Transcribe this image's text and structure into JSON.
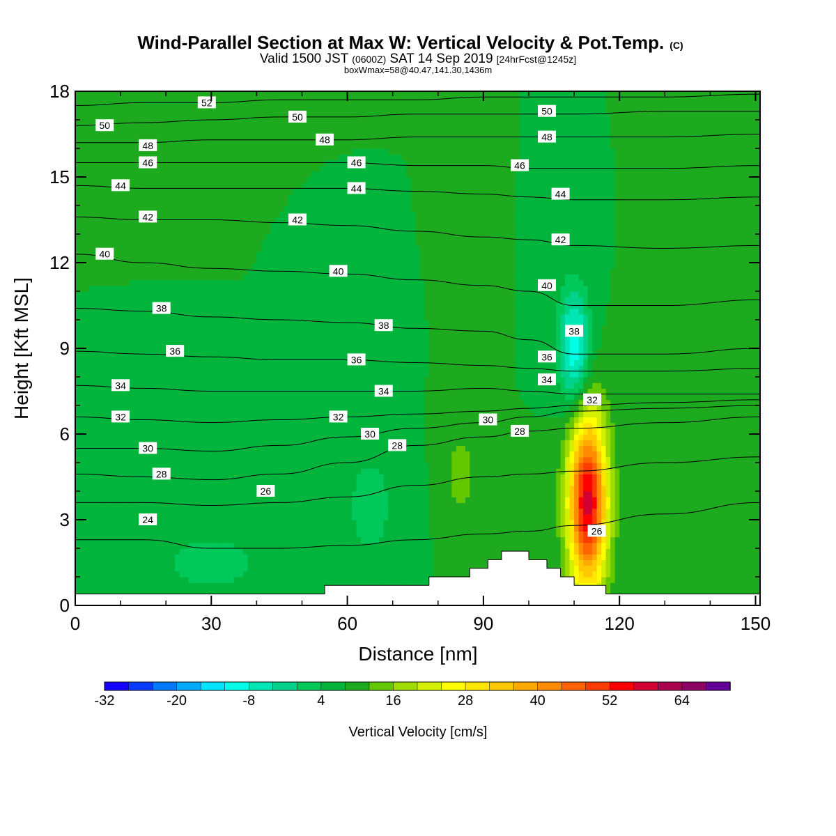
{
  "titles": {
    "main": "Wind-Parallel Section at Max W: Vertical Velocity & Pot.Temp.",
    "main_suffix": "(C)",
    "valid_prefix": "Valid 1500 JST",
    "valid_z": "(0600Z)",
    "valid_date": "SAT 14 Sep 2019",
    "valid_fcst": "[24hrFcst@1245z]",
    "boxinfo": "boxWmax=58@40.47,141.30,1436m"
  },
  "chart_data": {
    "type": "heatmap",
    "xlabel": "Distance [nm]",
    "ylabel": "Height [Kft MSL]",
    "xlim": [
      0,
      151
    ],
    "ylim": [
      0,
      18
    ],
    "x_ticks": [
      "0",
      "30",
      "60",
      "90",
      "120",
      "150"
    ],
    "y_ticks": [
      "0",
      "3",
      "6",
      "9",
      "12",
      "15",
      "18"
    ],
    "background_value": 8,
    "velocity_features": [
      {
        "x": 113,
        "y": 3.6,
        "rx": 5,
        "ry": 3.6,
        "peak": 58
      },
      {
        "x": 85,
        "y": 4.6,
        "rx": 4,
        "ry": 2,
        "peak": 14
      },
      {
        "x": 87,
        "y": 10.5,
        "rx": 3,
        "ry": 3,
        "peak": 12
      },
      {
        "x": 110,
        "y": 9,
        "rx": 4,
        "ry": 2.5,
        "peak": -12
      },
      {
        "x": 65,
        "y": 3.5,
        "rx": 7,
        "ry": 2.5,
        "peak": 2
      },
      {
        "x": 30,
        "y": 1.5,
        "rx": 20,
        "ry": 2,
        "peak": 3
      },
      {
        "x": 140,
        "y": 15,
        "rx": 6,
        "ry": 3,
        "peak": 12
      }
    ],
    "terrain": [
      [
        0,
        0.4
      ],
      [
        55,
        0.4
      ],
      [
        55,
        0.7
      ],
      [
        78,
        0.7
      ],
      [
        78,
        1.0
      ],
      [
        87,
        1.0
      ],
      [
        87,
        1.3
      ],
      [
        91,
        1.3
      ],
      [
        91,
        1.6
      ],
      [
        94,
        1.6
      ],
      [
        94,
        1.9
      ],
      [
        100,
        1.9
      ],
      [
        100,
        1.6
      ],
      [
        104,
        1.6
      ],
      [
        104,
        1.3
      ],
      [
        107,
        1.3
      ],
      [
        107,
        1.0
      ],
      [
        110,
        1.0
      ],
      [
        110,
        0.7
      ],
      [
        117,
        0.7
      ],
      [
        117,
        0.4
      ],
      [
        151,
        0.4
      ]
    ],
    "theta_contours": [
      {
        "value": 24,
        "height_kft": [
          2.3,
          2.3,
          2.0,
          2.0,
          2.1,
          2.3,
          2.5,
          2.6,
          2.8,
          3.2,
          3.6
        ]
      },
      {
        "value": 26,
        "height_kft": [
          3.6,
          3.6,
          3.5,
          3.6,
          3.8,
          4.2,
          4.5,
          4.6,
          4.7,
          5.0,
          5.2
        ]
      },
      {
        "value": 28,
        "height_kft": [
          4.6,
          4.5,
          4.4,
          4.6,
          5.0,
          5.6,
          5.9,
          6.1,
          6.2,
          6.4,
          6.6
        ]
      },
      {
        "value": 30,
        "height_kft": [
          5.5,
          5.5,
          5.4,
          5.6,
          5.9,
          6.2,
          6.4,
          6.6,
          6.8,
          6.9,
          7.0
        ]
      },
      {
        "value": 32,
        "height_kft": [
          6.6,
          6.5,
          6.4,
          6.5,
          6.6,
          6.7,
          6.8,
          6.9,
          7.0,
          7.1,
          7.2
        ]
      },
      {
        "value": 34,
        "height_kft": [
          7.7,
          7.6,
          7.5,
          7.5,
          7.5,
          7.5,
          7.6,
          7.5,
          7.4,
          7.4,
          7.4
        ]
      },
      {
        "value": 36,
        "height_kft": [
          8.9,
          8.8,
          8.7,
          8.6,
          8.6,
          8.5,
          8.4,
          8.3,
          8.2,
          8.2,
          8.3
        ]
      },
      {
        "value": 38,
        "height_kft": [
          10.4,
          10.3,
          10.1,
          10.0,
          9.9,
          9.7,
          9.6,
          9.3,
          8.8,
          8.8,
          9.0
        ]
      },
      {
        "value": 40,
        "height_kft": [
          12.3,
          12.0,
          11.8,
          11.7,
          11.6,
          11.4,
          11.2,
          11.0,
          10.5,
          10.5,
          10.7
        ]
      },
      {
        "value": 42,
        "height_kft": [
          13.6,
          13.5,
          13.5,
          13.4,
          13.3,
          13.1,
          12.9,
          12.8,
          12.6,
          12.5,
          12.6
        ]
      },
      {
        "value": 44,
        "height_kft": [
          14.7,
          14.6,
          14.6,
          14.6,
          14.6,
          14.5,
          14.4,
          14.3,
          14.2,
          14.2,
          14.3
        ]
      },
      {
        "value": 46,
        "height_kft": [
          15.5,
          15.5,
          15.5,
          15.5,
          15.5,
          15.4,
          15.4,
          15.3,
          15.3,
          15.3,
          15.4
        ]
      },
      {
        "value": 48,
        "height_kft": [
          16.2,
          16.2,
          16.3,
          16.3,
          16.3,
          16.4,
          16.4,
          16.4,
          16.4,
          16.4,
          16.5
        ]
      },
      {
        "value": 50,
        "height_kft": [
          16.8,
          16.9,
          17.0,
          17.1,
          17.1,
          17.2,
          17.2,
          17.2,
          17.2,
          17.3,
          17.3
        ]
      },
      {
        "value": 52,
        "height_kft": [
          17.5,
          17.6,
          17.6,
          17.7,
          17.7,
          17.7,
          17.8,
          17.8,
          17.8,
          17.8,
          17.9
        ]
      }
    ],
    "contour_x_nodes_nm": [
      0,
      15,
      30,
      45,
      60,
      75,
      90,
      100,
      110,
      130,
      151
    ],
    "contour_labels": [
      {
        "text": "52",
        "x": 29,
        "y": 17.6
      },
      {
        "text": "50",
        "x": 6.5,
        "y": 16.8
      },
      {
        "text": "50",
        "x": 49,
        "y": 17.1
      },
      {
        "text": "50",
        "x": 104,
        "y": 17.3
      },
      {
        "text": "48",
        "x": 16,
        "y": 16.1
      },
      {
        "text": "48",
        "x": 55,
        "y": 16.3
      },
      {
        "text": "48",
        "x": 104,
        "y": 16.4
      },
      {
        "text": "46",
        "x": 16,
        "y": 15.5
      },
      {
        "text": "46",
        "x": 62,
        "y": 15.5
      },
      {
        "text": "46",
        "x": 98,
        "y": 15.4
      },
      {
        "text": "44",
        "x": 10,
        "y": 14.7
      },
      {
        "text": "44",
        "x": 62,
        "y": 14.6
      },
      {
        "text": "44",
        "x": 107,
        "y": 14.4
      },
      {
        "text": "42",
        "x": 16,
        "y": 13.6
      },
      {
        "text": "42",
        "x": 49,
        "y": 13.5
      },
      {
        "text": "42",
        "x": 107,
        "y": 12.8
      },
      {
        "text": "40",
        "x": 6.5,
        "y": 12.3
      },
      {
        "text": "40",
        "x": 58,
        "y": 11.7
      },
      {
        "text": "40",
        "x": 104,
        "y": 11.2
      },
      {
        "text": "38",
        "x": 19,
        "y": 10.4
      },
      {
        "text": "38",
        "x": 68,
        "y": 9.8
      },
      {
        "text": "38",
        "x": 110,
        "y": 9.6
      },
      {
        "text": "36",
        "x": 22,
        "y": 8.9
      },
      {
        "text": "36",
        "x": 62,
        "y": 8.6
      },
      {
        "text": "36",
        "x": 104,
        "y": 8.7
      },
      {
        "text": "34",
        "x": 10,
        "y": 7.7
      },
      {
        "text": "34",
        "x": 68,
        "y": 7.5
      },
      {
        "text": "34",
        "x": 104,
        "y": 7.9
      },
      {
        "text": "32",
        "x": 10,
        "y": 6.6
      },
      {
        "text": "32",
        "x": 58,
        "y": 6.6
      },
      {
        "text": "32",
        "x": 114,
        "y": 7.2
      },
      {
        "text": "30",
        "x": 16,
        "y": 5.5
      },
      {
        "text": "30",
        "x": 65,
        "y": 6.0
      },
      {
        "text": "30",
        "x": 91,
        "y": 6.5
      },
      {
        "text": "28",
        "x": 19,
        "y": 4.6
      },
      {
        "text": "28",
        "x": 71,
        "y": 5.6
      },
      {
        "text": "28",
        "x": 98,
        "y": 6.1
      },
      {
        "text": "26",
        "x": 42,
        "y": 4.0
      },
      {
        "text": "26",
        "x": 115,
        "y": 2.6
      },
      {
        "text": "24",
        "x": 16,
        "y": 3.0
      }
    ],
    "colorbar": {
      "title": "Vertical Velocity [cm/s]",
      "tick_labels": [
        "-32",
        "-20",
        "-8",
        "4",
        "16",
        "28",
        "40",
        "52",
        "64"
      ],
      "tick_values": [
        -32,
        -20,
        -8,
        4,
        16,
        28,
        40,
        52,
        64
      ],
      "min": -32,
      "step": 4,
      "colors": [
        "#1400ff",
        "#0a3cff",
        "#0078ff",
        "#00aaff",
        "#00e4ff",
        "#00ffe6",
        "#00e6b4",
        "#00d28c",
        "#00c85a",
        "#00b43c",
        "#1eaa1e",
        "#64c800",
        "#a0dc00",
        "#d2f000",
        "#ffff00",
        "#ffe600",
        "#ffc800",
        "#ffaa00",
        "#ff8c00",
        "#ff6400",
        "#ff3c00",
        "#ff0000",
        "#d20032",
        "#aa0050",
        "#8c0064",
        "#640096"
      ]
    }
  }
}
